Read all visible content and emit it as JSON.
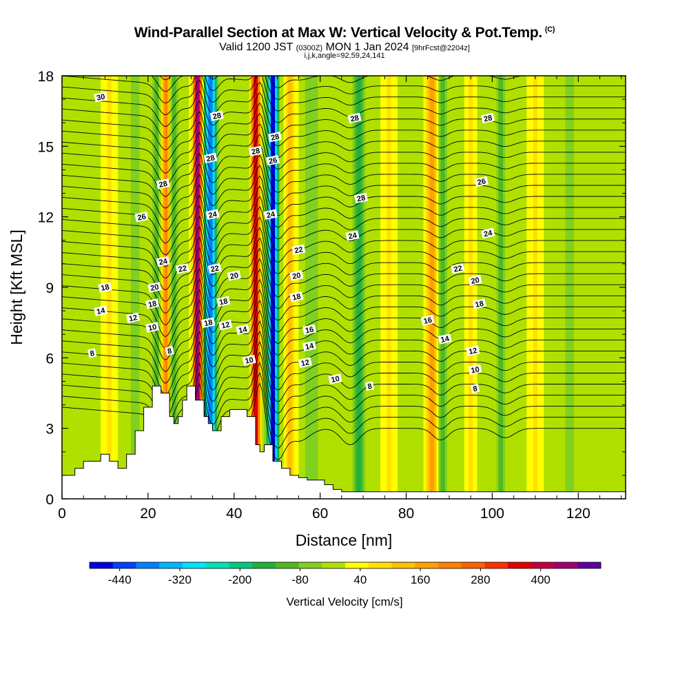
{
  "header": {
    "title": "Wind-Parallel Section at Max W: Vertical Velocity & Pot.Temp.",
    "copyright": "(C)",
    "valid_prefix": "Valid 1200 JST",
    "utc_time": "(0300Z)",
    "valid_date": "MON 1 Jan 2024",
    "forecast": "[9hrFcst@2204z]",
    "params": "i,j,k,angle=92,59,24,141"
  },
  "chart_data": {
    "type": "heatmap",
    "xlabel": "Distance [nm]",
    "ylabel": "Height [Kft MSL]",
    "xlim": [
      0,
      131
    ],
    "ylim": [
      0,
      18
    ],
    "xticks": [
      0,
      20,
      40,
      60,
      80,
      100,
      120
    ],
    "yticks": [
      0,
      3,
      6,
      9,
      12,
      15,
      18
    ],
    "background_value_cm_s": 0,
    "colorbar": {
      "title": "Vertical Velocity [cm/s]",
      "tick_labels": [
        "-440",
        "-320",
        "-200",
        "-80",
        "40",
        "160",
        "280",
        "400"
      ],
      "tick_values": [
        -440,
        -320,
        -200,
        -80,
        40,
        160,
        280,
        400
      ],
      "range": [
        -500,
        520
      ],
      "colors": [
        "#0000e0",
        "#0040ff",
        "#0080ff",
        "#00b4ff",
        "#00e0ff",
        "#00e0b4",
        "#00c880",
        "#20b040",
        "#50b820",
        "#80d020",
        "#b0e000",
        "#ffff00",
        "#ffe000",
        "#ffc000",
        "#ffa000",
        "#ff8000",
        "#ff6000",
        "#ff3000",
        "#e00000",
        "#c00040",
        "#a00070",
        "#6000a0"
      ]
    },
    "vertical_velocity_bands": [
      {
        "x": 11,
        "w": 1.5,
        "value": 60
      },
      {
        "x": 17,
        "w": 1.5,
        "value": -60
      },
      {
        "x": 22,
        "w": 1.2,
        "value": -100
      },
      {
        "x": 24,
        "w": 1.0,
        "value": 220
      },
      {
        "x": 26,
        "w": 1.0,
        "value": -100
      },
      {
        "x": 31.5,
        "w": 1.0,
        "value": 480
      },
      {
        "x": 34.5,
        "w": 1.3,
        "value": -420
      },
      {
        "x": 45,
        "w": 0.9,
        "value": 400
      },
      {
        "x": 49,
        "w": 1.1,
        "value": -480
      },
      {
        "x": 53,
        "w": 1.2,
        "value": 140
      },
      {
        "x": 58,
        "w": 1.5,
        "value": -80
      },
      {
        "x": 69,
        "w": 1.2,
        "value": -140
      },
      {
        "x": 76,
        "w": 1.5,
        "value": 60
      },
      {
        "x": 86,
        "w": 1.2,
        "value": 180
      },
      {
        "x": 88.5,
        "w": 1.0,
        "value": -120
      },
      {
        "x": 95,
        "w": 1.0,
        "value": 90
      },
      {
        "x": 102,
        "w": 1.2,
        "value": -90
      },
      {
        "x": 110,
        "w": 1.5,
        "value": 60
      },
      {
        "x": 118,
        "w": 1.2,
        "value": -80
      }
    ],
    "terrain": {
      "x": [
        0,
        1,
        3,
        5,
        7,
        9,
        11,
        13,
        15,
        17,
        19,
        21,
        23,
        25,
        26,
        27,
        28,
        29,
        31,
        33,
        34,
        35,
        37,
        39,
        41,
        43,
        45,
        46,
        47,
        49,
        51,
        53,
        55,
        57,
        59,
        61,
        63,
        65,
        67,
        70,
        131
      ],
      "y_kft": [
        1.0,
        1.0,
        1.3,
        1.6,
        1.6,
        1.9,
        1.6,
        1.3,
        1.9,
        2.9,
        3.9,
        4.8,
        4.5,
        3.5,
        3.2,
        3.5,
        4.2,
        4.8,
        4.2,
        3.5,
        3.2,
        2.9,
        3.5,
        3.8,
        3.8,
        3.5,
        2.3,
        2.0,
        2.3,
        1.6,
        1.3,
        1.0,
        0.9,
        0.8,
        0.8,
        0.6,
        0.4,
        0.3,
        0.3,
        0.3,
        0.3
      ]
    },
    "isentrope_labels": [
      {
        "text": "30",
        "x": 9,
        "y": 17.1
      },
      {
        "text": "28",
        "x": 36,
        "y": 16.3
      },
      {
        "text": "28",
        "x": 34.5,
        "y": 14.5
      },
      {
        "text": "28",
        "x": 45,
        "y": 14.8
      },
      {
        "text": "28",
        "x": 49.5,
        "y": 15.4
      },
      {
        "text": "26",
        "x": 49,
        "y": 14.4
      },
      {
        "text": "28",
        "x": 68,
        "y": 16.2
      },
      {
        "text": "28",
        "x": 99,
        "y": 16.2
      },
      {
        "text": "28",
        "x": 23.5,
        "y": 13.4
      },
      {
        "text": "26",
        "x": 18.5,
        "y": 12.0
      },
      {
        "text": "24",
        "x": 35,
        "y": 12.1
      },
      {
        "text": "24",
        "x": 48.5,
        "y": 12.1
      },
      {
        "text": "28",
        "x": 69.5,
        "y": 12.8
      },
      {
        "text": "26",
        "x": 97.5,
        "y": 13.5
      },
      {
        "text": "24",
        "x": 67.5,
        "y": 11.2
      },
      {
        "text": "24",
        "x": 99,
        "y": 11.3
      },
      {
        "text": "24",
        "x": 23.5,
        "y": 10.1
      },
      {
        "text": "22",
        "x": 28,
        "y": 9.8
      },
      {
        "text": "22",
        "x": 35.5,
        "y": 9.8
      },
      {
        "text": "22",
        "x": 55,
        "y": 10.6
      },
      {
        "text": "22",
        "x": 92,
        "y": 9.8
      },
      {
        "text": "20",
        "x": 21.5,
        "y": 9.0
      },
      {
        "text": "20",
        "x": 40,
        "y": 9.5
      },
      {
        "text": "20",
        "x": 54.5,
        "y": 9.5
      },
      {
        "text": "20",
        "x": 96,
        "y": 9.3
      },
      {
        "text": "18",
        "x": 10,
        "y": 9.0
      },
      {
        "text": "18",
        "x": 21,
        "y": 8.3
      },
      {
        "text": "18",
        "x": 37.5,
        "y": 8.4
      },
      {
        "text": "18",
        "x": 54.5,
        "y": 8.6
      },
      {
        "text": "18",
        "x": 97,
        "y": 8.3
      },
      {
        "text": "16",
        "x": 85,
        "y": 7.6
      },
      {
        "text": "16",
        "x": 57.5,
        "y": 7.2
      },
      {
        "text": "14",
        "x": 9,
        "y": 8.0
      },
      {
        "text": "12",
        "x": 16.5,
        "y": 7.7
      },
      {
        "text": "10",
        "x": 21,
        "y": 7.3
      },
      {
        "text": "18",
        "x": 34,
        "y": 7.5
      },
      {
        "text": "12",
        "x": 38,
        "y": 7.4
      },
      {
        "text": "14",
        "x": 42,
        "y": 7.2
      },
      {
        "text": "14",
        "x": 57.5,
        "y": 6.5
      },
      {
        "text": "14",
        "x": 89,
        "y": 6.8
      },
      {
        "text": "12",
        "x": 95.5,
        "y": 6.3
      },
      {
        "text": "12",
        "x": 56.5,
        "y": 5.8
      },
      {
        "text": "10",
        "x": 43.5,
        "y": 5.9
      },
      {
        "text": "10",
        "x": 63.5,
        "y": 5.1
      },
      {
        "text": "10",
        "x": 96,
        "y": 5.5
      },
      {
        "text": "8",
        "x": 7,
        "y": 6.2
      },
      {
        "text": "8",
        "x": 25,
        "y": 6.3
      },
      {
        "text": "8",
        "x": 71.5,
        "y": 4.8
      },
      {
        "text": "8",
        "x": 96,
        "y": 4.7
      }
    ]
  }
}
